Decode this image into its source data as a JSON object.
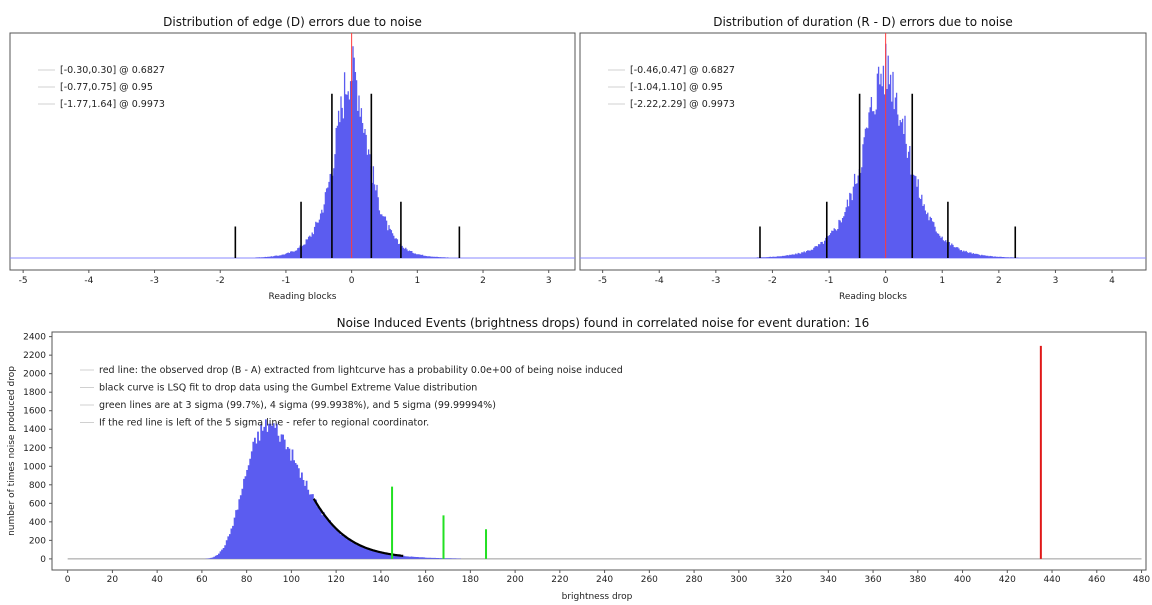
{
  "chart_data": [
    {
      "type": "histogram",
      "title": "Distribution of edge (D) errors due to noise",
      "xlabel": "Reading blocks",
      "xlim": [
        -5.2,
        3.4
      ],
      "xticks": [
        -5,
        -4,
        -3,
        -2,
        -1,
        0,
        1,
        2,
        3
      ],
      "distribution": {
        "center": 0.0,
        "sigma": 0.3,
        "peak_fraction": 0.92
      },
      "legend": [
        "[-0.30,0.30] @ 0.6827",
        "[-0.77,0.75] @ 0.95",
        "[-1.77,1.64] @ 0.9973"
      ],
      "red_line_x": 0.0,
      "interval_markers": [
        {
          "x": -0.3,
          "height": 0.73
        },
        {
          "x": 0.3,
          "height": 0.73
        },
        {
          "x": -0.77,
          "height": 0.25
        },
        {
          "x": 0.75,
          "height": 0.25
        },
        {
          "x": -1.77,
          "height": 0.14
        },
        {
          "x": 1.64,
          "height": 0.14
        }
      ],
      "colors": {
        "bars": "#5b5cf0",
        "marker": "#000000",
        "red": "#ff3b3b"
      }
    },
    {
      "type": "histogram",
      "title": "Distribution of duration (R - D) errors due to noise",
      "xlabel": "Reading blocks",
      "xlim": [
        -5.4,
        4.6
      ],
      "xticks": [
        -5,
        -4,
        -3,
        -2,
        -1,
        0,
        1,
        2,
        3,
        4
      ],
      "distribution": {
        "center": 0.0,
        "sigma": 0.47,
        "peak_fraction": 0.92
      },
      "legend": [
        "[-0.46,0.47] @ 0.6827",
        "[-1.04,1.10] @ 0.95",
        "[-2.22,2.29] @ 0.9973"
      ],
      "red_line_x": 0.0,
      "interval_markers": [
        {
          "x": -0.46,
          "height": 0.73
        },
        {
          "x": 0.47,
          "height": 0.73
        },
        {
          "x": -1.04,
          "height": 0.25
        },
        {
          "x": 1.1,
          "height": 0.25
        },
        {
          "x": -2.22,
          "height": 0.14
        },
        {
          "x": 2.29,
          "height": 0.14
        }
      ],
      "colors": {
        "bars": "#5b5cf0",
        "marker": "#000000",
        "red": "#ff3b3b"
      }
    },
    {
      "type": "histogram",
      "title": "Noise Induced Events (brightness drops) found in correlated noise for event duration: 16",
      "xlabel": "brightness drop",
      "ylabel": "number of times noise produced drop",
      "xlim": [
        -7,
        482
      ],
      "ylim": [
        -120,
        2450
      ],
      "xticks": [
        0,
        20,
        40,
        60,
        80,
        100,
        120,
        140,
        160,
        180,
        200,
        220,
        240,
        260,
        280,
        300,
        320,
        340,
        360,
        380,
        400,
        420,
        440,
        460,
        480
      ],
      "yticks": [
        0,
        200,
        400,
        600,
        800,
        1000,
        1200,
        1400,
        1600,
        1800,
        2000,
        2200,
        2400
      ],
      "distribution": {
        "mode": 90,
        "scale": 12.5,
        "peak": 1450,
        "range": [
          48,
          176
        ]
      },
      "gumbel_fit": {
        "x_start": 110,
        "x_end": 150,
        "mode": 90,
        "scale": 12.5,
        "peak": 1450
      },
      "green_lines": [
        {
          "x": 145,
          "y": 780
        },
        {
          "x": 168,
          "y": 470
        },
        {
          "x": 187,
          "y": 320
        }
      ],
      "red_line": {
        "x": 435,
        "y": 2300
      },
      "legend": [
        "red line: the observed drop (B - A) extracted from lightcurve has a probability 0.0e+00 of being noise induced",
        "black curve is LSQ fit to drop data using the Gumbel Extreme Value distribution",
        "green lines are at 3 sigma (99.7%), 4 sigma (99.9938%), and 5 sigma (99.99994%)",
        "If the red line is left of the 5 sigma line - refer to regional coordinator."
      ],
      "colors": {
        "bars": "#5b5cf0",
        "fit": "#000000",
        "green": "#22e022",
        "red": "#e01818"
      }
    }
  ]
}
